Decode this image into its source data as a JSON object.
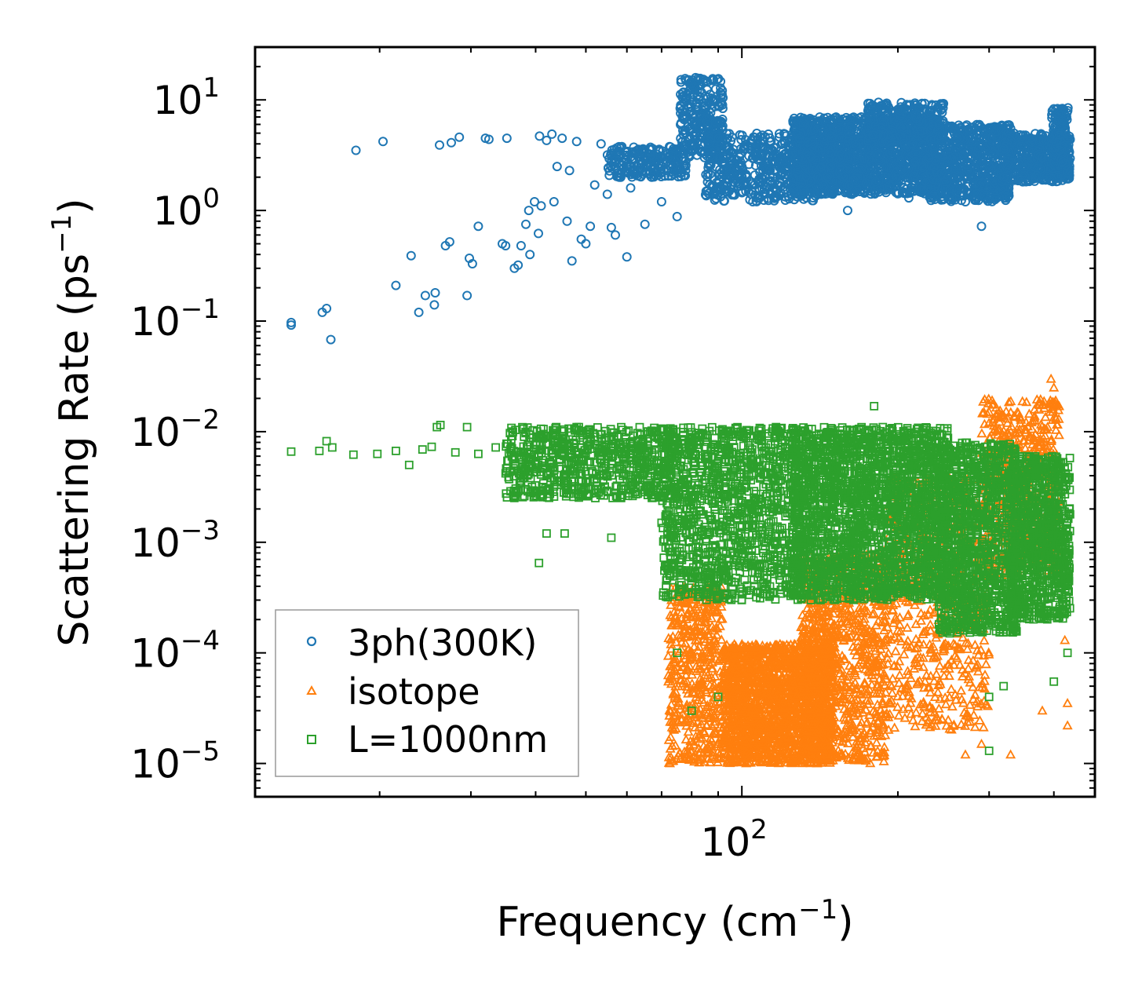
{
  "chart_data": {
    "type": "scatter",
    "title": "",
    "xlabel": "Frequency (cm",
    "xlabel_sup": "−1",
    "xlabel_end": ")",
    "ylabel": "Scattering Rate (ps",
    "ylabel_sup": "−1",
    "ylabel_end": ")",
    "xscale": "log",
    "yscale": "log",
    "xlim": [
      11.5,
      480
    ],
    "ylim": [
      5e-06,
      30
    ],
    "x_ticks": [
      {
        "value": 100,
        "base": "10",
        "exp": "2"
      }
    ],
    "y_ticks": [
      {
        "value": 10,
        "base": "10",
        "exp": "1"
      },
      {
        "value": 1,
        "base": "10",
        "exp": "0"
      },
      {
        "value": 0.1,
        "base": "10",
        "exp": "−1"
      },
      {
        "value": 0.01,
        "base": "10",
        "exp": "−2"
      },
      {
        "value": 0.001,
        "base": "10",
        "exp": "−3"
      },
      {
        "value": 0.0001,
        "base": "10",
        "exp": "−4"
      },
      {
        "value": 1e-05,
        "base": "10",
        "exp": "−5"
      }
    ],
    "legend_position": "lower-left",
    "series": [
      {
        "name": "3ph(300K)",
        "marker": "circle",
        "color": "#1f77b4",
        "points": [
          [
            13.5,
            0.092
          ],
          [
            13.5,
            0.097
          ],
          [
            15.5,
            0.12
          ],
          [
            15.8,
            0.13
          ],
          [
            16.1,
            0.068
          ],
          [
            18.0,
            3.5
          ],
          [
            20.3,
            4.2
          ],
          [
            21.5,
            0.21
          ],
          [
            23.0,
            0.39
          ],
          [
            23.8,
            0.12
          ],
          [
            24.5,
            0.17
          ],
          [
            25.6,
            0.18
          ],
          [
            25.5,
            0.14
          ],
          [
            26.1,
            3.9
          ],
          [
            26.8,
            0.48
          ],
          [
            27.3,
            0.52
          ],
          [
            27.5,
            4.1
          ],
          [
            28.5,
            4.6
          ],
          [
            29.8,
            0.37
          ],
          [
            30.2,
            0.33
          ],
          [
            29.5,
            0.17
          ],
          [
            31.0,
            0.72
          ],
          [
            32.0,
            4.5
          ],
          [
            32.5,
            4.4
          ],
          [
            34.5,
            0.5
          ],
          [
            35.0,
            0.48
          ],
          [
            35.2,
            4.5
          ],
          [
            36.4,
            0.3
          ],
          [
            37.0,
            0.32
          ],
          [
            37.5,
            0.48
          ],
          [
            38.3,
            0.75
          ],
          [
            38.8,
            1.0
          ],
          [
            39.0,
            0.4
          ],
          [
            39.8,
            1.2
          ],
          [
            40.5,
            0.62
          ],
          [
            40.7,
            4.7
          ],
          [
            41.0,
            1.1
          ],
          [
            42.0,
            4.3
          ],
          [
            43.0,
            4.9
          ],
          [
            43.4,
            1.2
          ],
          [
            44.0,
            2.5
          ],
          [
            45.0,
            4.5
          ],
          [
            46.0,
            0.8
          ],
          [
            46.5,
            2.3
          ],
          [
            47.0,
            0.35
          ],
          [
            48.0,
            4.2
          ],
          [
            49.0,
            0.55
          ],
          [
            50.0,
            0.5
          ],
          [
            51.0,
            0.72
          ],
          [
            52.0,
            1.7
          ],
          [
            53.5,
            4.0
          ],
          [
            55.0,
            1.4
          ],
          [
            56.0,
            0.7
          ],
          [
            57.0,
            0.6
          ],
          [
            58.0,
            2.0
          ],
          [
            60.0,
            0.38
          ],
          [
            61.0,
            1.6
          ],
          [
            63.0,
            3.5
          ],
          [
            65.0,
            0.75
          ],
          [
            67.0,
            2.0
          ],
          [
            70.0,
            1.2
          ],
          [
            72.0,
            3.0
          ],
          [
            75.0,
            0.88
          ],
          [
            78.0,
            15.0
          ],
          [
            80.0,
            14.0
          ],
          [
            82.0,
            11.0
          ],
          [
            84.0,
            8.0
          ],
          [
            86.0,
            6.0
          ],
          [
            90.0,
            4.5
          ],
          [
            95.0,
            3.0
          ],
          [
            100.0,
            2.5
          ],
          [
            105.0,
            1.2
          ],
          [
            110.0,
            3.3
          ],
          [
            115.0,
            1.6
          ],
          [
            120.0,
            2.8
          ],
          [
            130.0,
            5.0
          ],
          [
            140.0,
            2.0
          ],
          [
            150.0,
            5.5
          ],
          [
            160.0,
            1.0
          ],
          [
            170.0,
            7.0
          ],
          [
            180.0,
            4.0
          ],
          [
            190.0,
            2.5
          ],
          [
            200.0,
            8.2
          ],
          [
            210.0,
            1.3
          ],
          [
            220.0,
            8.5
          ],
          [
            230.0,
            3.0
          ],
          [
            240.0,
            6.0
          ],
          [
            250.0,
            2.4
          ],
          [
            260.0,
            4.5
          ],
          [
            270.0,
            1.2
          ],
          [
            290.0,
            0.72
          ],
          [
            300.0,
            2.5
          ],
          [
            310.0,
            4.0
          ],
          [
            320.0,
            2.0
          ],
          [
            330.0,
            5.5
          ],
          [
            350.0,
            2.2
          ],
          [
            380.0,
            3.0
          ],
          [
            400.0,
            8.3
          ],
          [
            410.0,
            3.5
          ],
          [
            425.0,
            4.5
          ]
        ],
        "clusters": [
          {
            "x": [
              55,
              78
            ],
            "y": [
              2.0,
              3.8
            ],
            "n": 220
          },
          {
            "x": [
              76,
              92
            ],
            "y": [
              3.0,
              16.0
            ],
            "n": 260
          },
          {
            "x": [
              85,
              140
            ],
            "y": [
              1.2,
              5.0
            ],
            "n": 500
          },
          {
            "x": [
              125,
              235
            ],
            "y": [
              1.4,
              7.0
            ],
            "n": 1500
          },
          {
            "x": [
              175,
              245
            ],
            "y": [
              4.0,
              9.5
            ],
            "n": 300
          },
          {
            "x": [
              230,
              330
            ],
            "y": [
              1.2,
              6.0
            ],
            "n": 700
          },
          {
            "x": [
              320,
              430
            ],
            "y": [
              1.8,
              5.0
            ],
            "n": 450
          },
          {
            "x": [
              395,
              428
            ],
            "y": [
              2.5,
              8.5
            ],
            "n": 120
          }
        ]
      },
      {
        "name": "isotope",
        "marker": "triangle",
        "color": "#ff7f0e",
        "points": [
          [
            300,
            0.015
          ],
          [
            320,
            0.014
          ],
          [
            340,
            0.015
          ],
          [
            395,
            0.03
          ],
          [
            400,
            0.025
          ],
          [
            420,
            0.00013
          ],
          [
            425,
            3.5e-05
          ],
          [
            425,
            2.2e-05
          ],
          [
            380,
            3e-05
          ],
          [
            330,
            1.2e-05
          ],
          [
            290,
            1.5e-05
          ],
          [
            270,
            1.2e-05
          ]
        ],
        "clusters": [
          {
            "x": [
              72,
              92
            ],
            "y": [
              1e-05,
              0.0004
            ],
            "n": 500
          },
          {
            "x": [
              92,
              150
            ],
            "y": [
              1e-05,
              0.00012
            ],
            "n": 1800
          },
          {
            "x": [
              130,
              190
            ],
            "y": [
              1e-05,
              0.0008
            ],
            "n": 900
          },
          {
            "x": [
              190,
              300
            ],
            "y": [
              2e-05,
              0.004
            ],
            "n": 600
          },
          {
            "x": [
              290,
              410
            ],
            "y": [
              0.0005,
              0.02
            ],
            "n": 600
          }
        ]
      },
      {
        "name": "L=1000nm",
        "marker": "square",
        "color": "#2ca02c",
        "points": [
          [
            13.5,
            0.0066
          ],
          [
            15.3,
            0.0067
          ],
          [
            15.8,
            0.0082
          ],
          [
            16.2,
            0.0072
          ],
          [
            17.8,
            0.0062
          ],
          [
            19.8,
            0.0063
          ],
          [
            21.5,
            0.0067
          ],
          [
            22.8,
            0.005
          ],
          [
            24.2,
            0.0069
          ],
          [
            25.2,
            0.0073
          ],
          [
            25.8,
            0.011
          ],
          [
            26.2,
            0.0115
          ],
          [
            28.0,
            0.0065
          ],
          [
            29.5,
            0.011
          ],
          [
            31.0,
            0.0063
          ],
          [
            33.5,
            0.0072
          ],
          [
            35.0,
            0.0042
          ],
          [
            38.0,
            0.009
          ],
          [
            40.6,
            0.00065
          ],
          [
            42.0,
            0.0012
          ],
          [
            44.0,
            0.0035
          ],
          [
            45.5,
            0.0012
          ],
          [
            47.0,
            0.0058
          ],
          [
            48.0,
            0.011
          ],
          [
            56.0,
            0.0011
          ],
          [
            70.0,
            0.0015
          ],
          [
            75.0,
            0.0001
          ],
          [
            80.0,
            3e-05
          ],
          [
            90.0,
            4e-05
          ],
          [
            400,
            5.5e-05
          ],
          [
            420,
            0.00023
          ],
          [
            425,
            0.0001
          ],
          [
            180,
            0.017
          ],
          [
            300,
            4e-05
          ],
          [
            300,
            1.3e-05
          ],
          [
            320,
            5e-05
          ]
        ],
        "clusters": [
          {
            "x": [
              35,
              75
            ],
            "y": [
              0.0025,
              0.011
            ],
            "n": 700
          },
          {
            "x": [
              70,
              130
            ],
            "y": [
              0.0003,
              0.011
            ],
            "n": 1200
          },
          {
            "x": [
              125,
              250
            ],
            "y": [
              0.0003,
              0.011
            ],
            "n": 2200
          },
          {
            "x": [
              240,
              340
            ],
            "y": [
              0.00015,
              0.008
            ],
            "n": 1100
          },
          {
            "x": [
              330,
              430
            ],
            "y": [
              0.0002,
              0.006
            ],
            "n": 900
          }
        ]
      }
    ]
  }
}
